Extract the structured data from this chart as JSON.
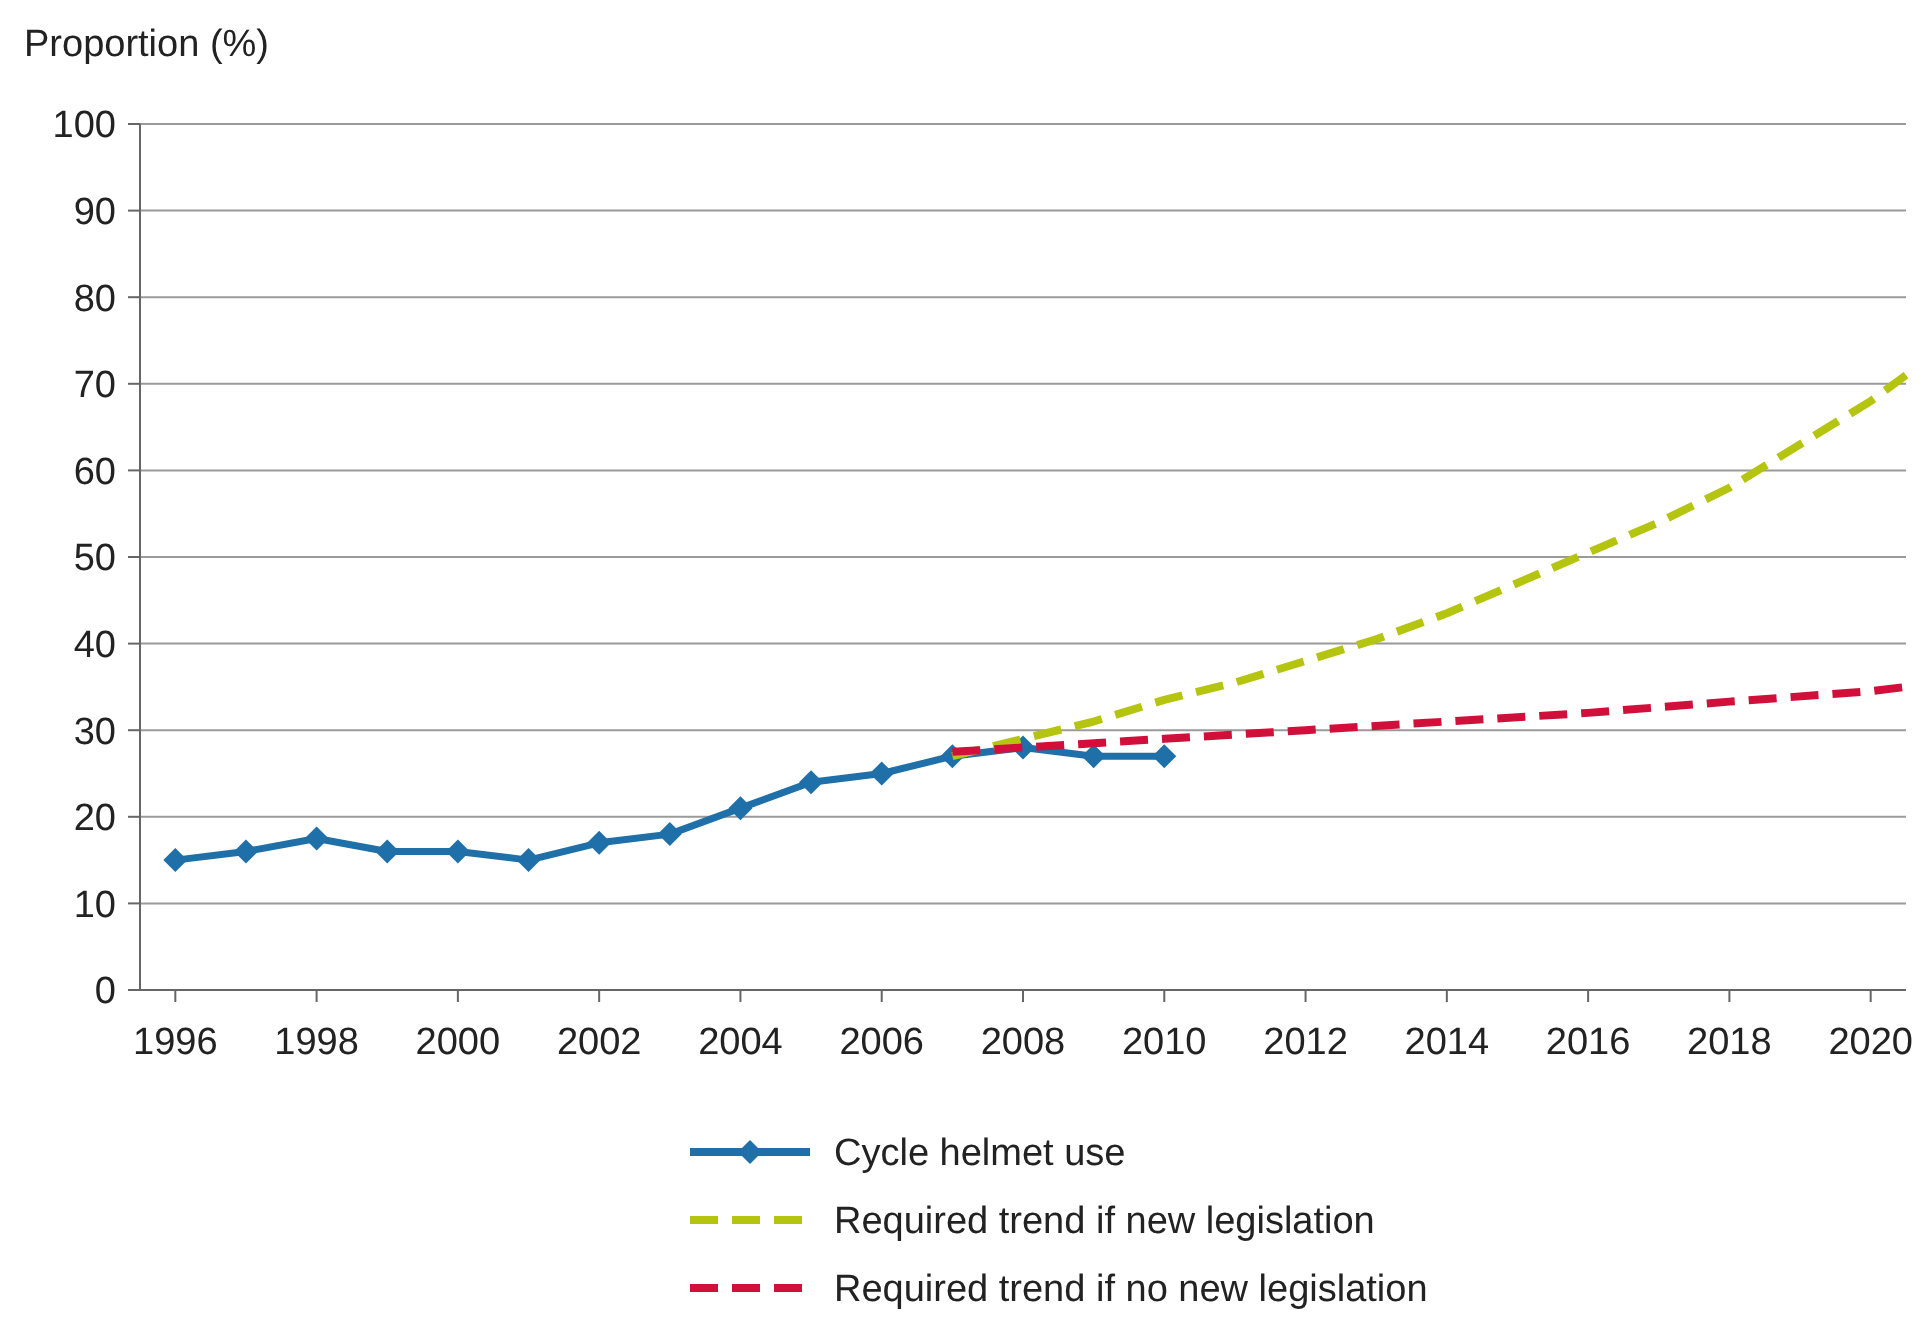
{
  "chart_data": {
    "type": "line",
    "ylabel": "Proportion (%)",
    "xlim": [
      1995.5,
      2020.5
    ],
    "xticks": [
      1996,
      1998,
      2000,
      2002,
      2004,
      2006,
      2008,
      2010,
      2012,
      2014,
      2016,
      2018,
      2020
    ],
    "ylim": [
      0,
      100
    ],
    "yticks": [
      0,
      10,
      20,
      30,
      40,
      50,
      60,
      70,
      80,
      90,
      100
    ],
    "grid": "y",
    "legend": "bottom",
    "series": [
      {
        "name": "Cycle helmet use",
        "color": "#1f6fa8",
        "marker": "diamond",
        "line_style": "solid",
        "x": [
          1996,
          1997,
          1998,
          1999,
          2000,
          2001,
          2002,
          2003,
          2004,
          2005,
          2006,
          2007,
          2008,
          2009,
          2010
        ],
        "values": [
          15,
          16,
          17.5,
          16,
          16,
          15,
          17,
          18,
          21,
          24,
          25,
          27,
          28,
          27,
          27
        ]
      },
      {
        "name": "Required trend if new legislation",
        "color": "#b5c40e",
        "marker": "none",
        "line_style": "dashed",
        "x": [
          2007,
          2008,
          2009,
          2010,
          2011,
          2012,
          2013,
          2014,
          2015,
          2016,
          2017,
          2018,
          2019,
          2020,
          2020.5
        ],
        "values": [
          27,
          29,
          31,
          33.5,
          35.5,
          38,
          40.5,
          43.5,
          47,
          50.5,
          54,
          58,
          63,
          68,
          71
        ]
      },
      {
        "name": "Required trend if no new legislation",
        "color": "#d0103a",
        "marker": "none",
        "line_style": "dashed",
        "x": [
          2007,
          2008,
          2010,
          2012,
          2014,
          2016,
          2018,
          2020,
          2020.5
        ],
        "values": [
          27.5,
          28,
          29,
          30,
          31,
          32,
          33.3,
          34.5,
          35
        ]
      }
    ]
  }
}
